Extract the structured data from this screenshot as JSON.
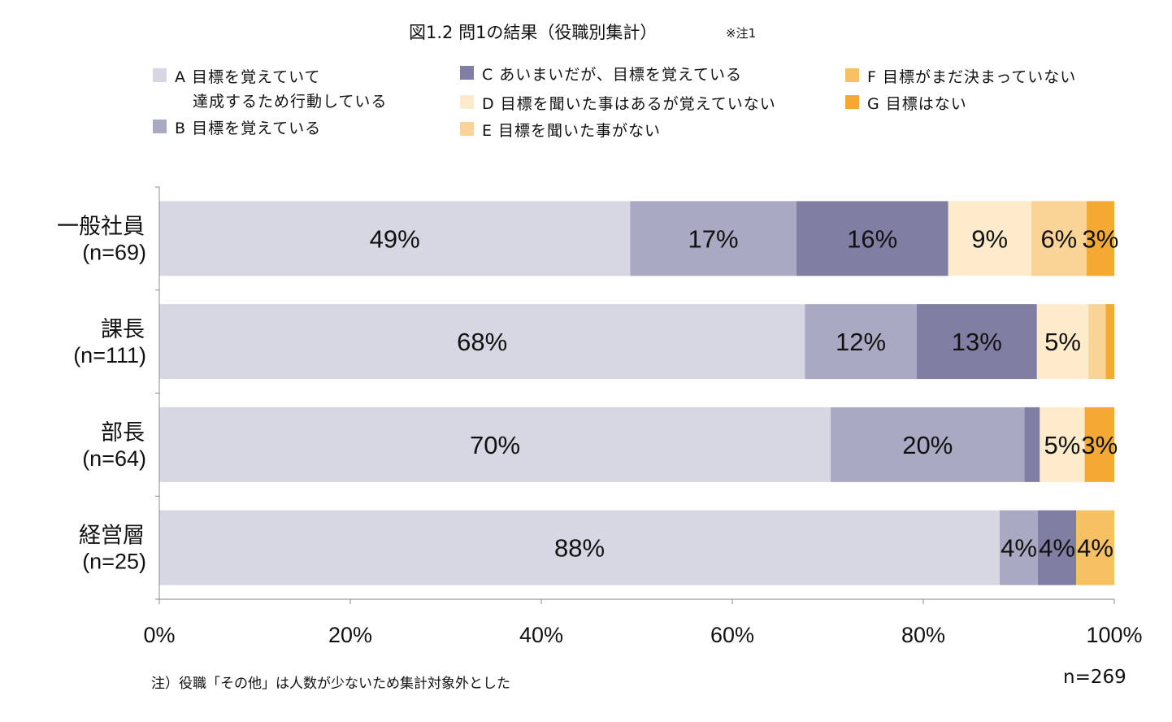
{
  "chart_data": {
    "type": "bar",
    "orientation": "horizontal-stacked-100",
    "title": "図1.2 問1の結果（役職別集計）",
    "title_note": "※注1",
    "categories": [
      {
        "name": "一般社員",
        "n": "(n=69)"
      },
      {
        "name": "課長",
        "n": "(n=111)"
      },
      {
        "name": "部長",
        "n": "(n=64)"
      },
      {
        "name": "経営層",
        "n": "(n=25)"
      }
    ],
    "series": [
      {
        "name": "A 目標を覚えていて\n達成するため行動している",
        "line1": "A 目標を覚えていて",
        "line2": "達成するため行動している",
        "color": "#d7d7e4",
        "values": [
          49.3,
          67.6,
          70.3,
          88
        ],
        "labels": [
          "49%",
          "68%",
          "70%",
          "88%"
        ]
      },
      {
        "name": "B 目標を覚えている",
        "color": "#aaa9c3",
        "values": [
          17.4,
          11.7,
          20.3,
          4
        ],
        "labels": [
          "17%",
          "12%",
          "20%",
          "4%"
        ]
      },
      {
        "name": "C あいまいだが、目標を覚えている",
        "color": "#807ea3",
        "values": [
          15.9,
          12.6,
          1.6,
          4
        ],
        "labels": [
          "16%",
          "13%",
          null,
          "4%"
        ]
      },
      {
        "name": "D 目標を聞いた事はあるが覚えていない",
        "color": "#fdebcc",
        "values": [
          8.7,
          5.4,
          4.7,
          0
        ],
        "labels": [
          "9%",
          "5%",
          "5%",
          null
        ]
      },
      {
        "name": "E 目標を聞いた事がない",
        "color": "#f9d496",
        "values": [
          5.8,
          1.8,
          0,
          0
        ],
        "labels": [
          "6%",
          null,
          null,
          null
        ]
      },
      {
        "name": "F 目標がまだ決まっていない",
        "color": "#f7c063",
        "values": [
          0,
          0,
          0,
          4
        ],
        "labels": [
          null,
          null,
          null,
          "4%"
        ]
      },
      {
        "name": "G 目標はない",
        "color": "#f4a934",
        "values": [
          2.9,
          0.9,
          3.1,
          0
        ],
        "labels": [
          "3%",
          null,
          "3%",
          null
        ]
      }
    ],
    "xlim": [
      0,
      100
    ],
    "xticks": [
      "0%",
      "20%",
      "40%",
      "60%",
      "80%",
      "100%"
    ],
    "legend_placement": "top",
    "footnote": "注）役職「その他」は人数が少ないため集計対象外とした",
    "total_n": "n=269"
  }
}
